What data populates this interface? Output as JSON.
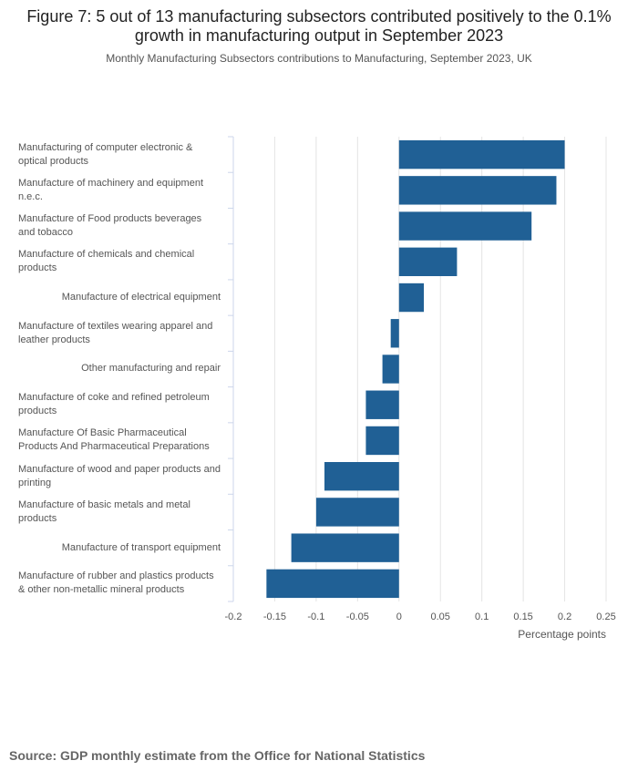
{
  "chart_data": {
    "type": "bar",
    "orientation": "horizontal",
    "title": "Figure 7: 5 out of 13 manufacturing subsectors contributed positively to the 0.1% growth in manufacturing output in September 2023",
    "subtitle": "Monthly Manufacturing Subsectors contributions to Manufacturing, September 2023, UK",
    "x_label": "Percentage points",
    "source": "Source: GDP monthly estimate from the Office for National Statistics",
    "categories": [
      "Manufacturing of computer electronic & optical products",
      "Manufacture of machinery and equipment n.e.c.",
      "Manufacture of Food products beverages and tobacco",
      "Manufacture of chemicals and chemical products",
      "Manufacture of electrical equipment",
      "Manufacture of textiles wearing apparel and leather products",
      "Other manufacturing and repair",
      "Manufacture of coke and refined petroleum products",
      "Manufacture Of Basic Pharmaceutical Products And Pharmaceutical Preparations",
      "Manufacture of wood and paper products and printing",
      "Manufacture of basic metals and metal products",
      "Manufacture of transport equipment",
      "Manufacture of rubber and plastics products & other non-metallic mineral products"
    ],
    "values": [
      0.2,
      0.19,
      0.16,
      0.07,
      0.03,
      -0.01,
      -0.02,
      -0.04,
      -0.04,
      -0.09,
      -0.1,
      -0.13,
      -0.16
    ],
    "color": "#206095",
    "xlim": [
      -0.2,
      0.25
    ],
    "xticks": [
      -0.2,
      -0.15,
      -0.1,
      -0.05,
      0,
      0.05,
      0.1,
      0.15,
      0.2,
      0.25
    ],
    "grid": true
  }
}
